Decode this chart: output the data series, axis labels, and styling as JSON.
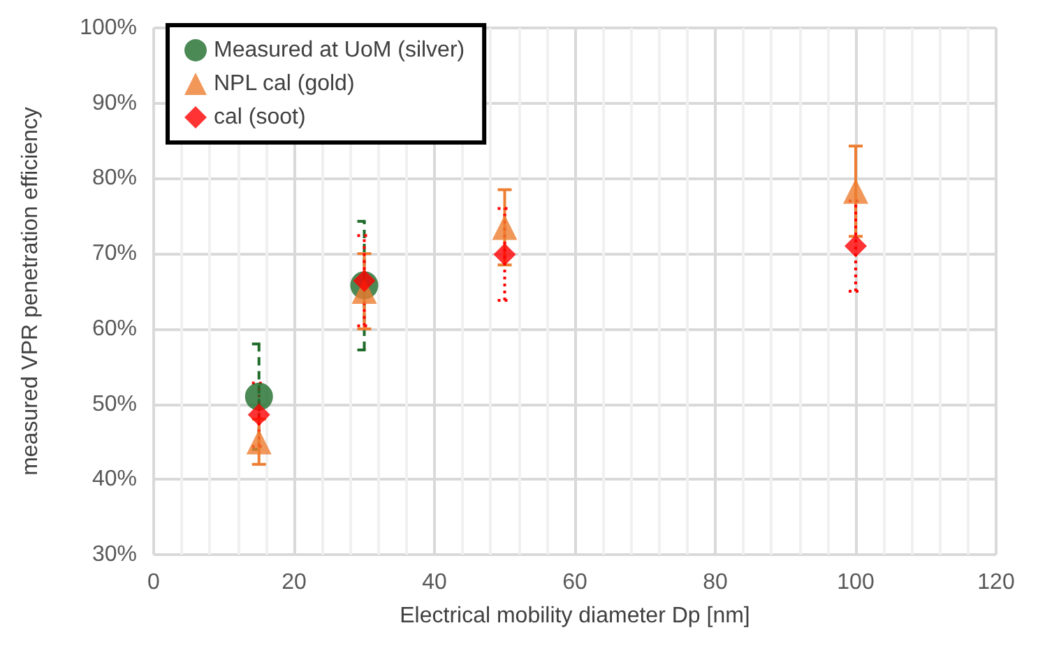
{
  "chart_data": {
    "type": "scatter",
    "xlabel": "Electrical mobility diameter Dp [nm]",
    "ylabel": "measured VPR penetration efficiency",
    "xlim": [
      0,
      120
    ],
    "xticks": [
      0,
      20,
      40,
      60,
      80,
      100,
      120
    ],
    "ylim": [
      30,
      100
    ],
    "yticks": [
      {
        "value": 30,
        "label": "30%"
      },
      {
        "value": 40,
        "label": "40%"
      },
      {
        "value": 50,
        "label": "50%"
      },
      {
        "value": 60,
        "label": "60%"
      },
      {
        "value": 70,
        "label": "70%"
      },
      {
        "value": 80,
        "label": "80%"
      },
      {
        "value": 90,
        "label": "90%"
      },
      {
        "value": 100,
        "label": "100%"
      }
    ],
    "grid": true,
    "legend": "top left",
    "series": [
      {
        "name": "Measured at UoM (silver)",
        "color": "#1e6b2a",
        "marker": "circle",
        "line_style": "dashed",
        "x": [
          15,
          30
        ],
        "values": [
          51,
          65.8
        ],
        "errors": [
          7,
          [
            57.2,
            74.3
          ]
        ]
      },
      {
        "name": "NPL cal (gold)",
        "color": "#ed7d31",
        "marker": "triangle",
        "line_style": "solid",
        "x": [
          15,
          30,
          50,
          100
        ],
        "values": [
          45,
          65,
          73.5,
          78.3
        ],
        "errors": [
          3,
          5,
          5,
          6
        ]
      },
      {
        "name": "cal (soot)",
        "color": "#ff0000",
        "marker": "diamond",
        "line_style": "dotted",
        "x": [
          15,
          30,
          50,
          100
        ],
        "values": [
          48.6,
          66.4,
          69.9,
          71
        ],
        "errors": [
          4.2,
          6,
          6.1,
          6
        ]
      }
    ]
  }
}
